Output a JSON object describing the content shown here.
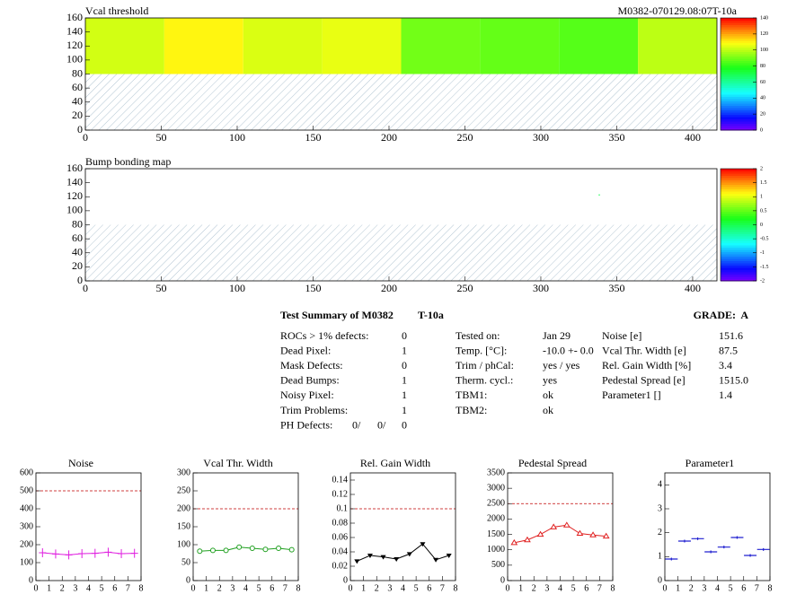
{
  "chart_data": [
    {
      "type": "heatmap",
      "title": "Vcal threshold",
      "subtitle": "M0382-070129.08:07T-10a",
      "xlim": [
        0,
        416
      ],
      "xticks": [
        0,
        50,
        100,
        150,
        200,
        250,
        300,
        350,
        400
      ],
      "ylim": [
        0,
        160
      ],
      "yticks": [
        0,
        20,
        40,
        60,
        80,
        100,
        120,
        140,
        160
      ],
      "x_edges": [
        0,
        52,
        104,
        156,
        208,
        260,
        312,
        364,
        416
      ],
      "y_edges": [
        80,
        160
      ],
      "z": [
        [
          103,
          110,
          104,
          106,
          90,
          88,
          86,
          100
        ]
      ],
      "masked_rows": [
        0,
        80
      ],
      "zlim": [
        0,
        140
      ],
      "zticks": [
        0,
        20,
        40,
        60,
        80,
        100,
        120,
        140
      ]
    },
    {
      "type": "heatmap",
      "title": "Bump bonding map",
      "xlim": [
        0,
        416
      ],
      "xticks": [
        0,
        50,
        100,
        150,
        200,
        250,
        300,
        350,
        400
      ],
      "ylim": [
        0,
        160
      ],
      "yticks": [
        0,
        20,
        40,
        60,
        80,
        100,
        120,
        140,
        160
      ],
      "x": [
        338
      ],
      "y": [
        122
      ],
      "values": [
        0
      ],
      "masked_rows": [
        0,
        80
      ],
      "zlim": [
        -2,
        2
      ],
      "zticks": [
        -2,
        -1.5,
        -1,
        -0.5,
        0,
        0.5,
        1,
        1.5,
        2
      ]
    },
    {
      "type": "line",
      "title": "Noise",
      "x": [
        0.5,
        1.5,
        2.5,
        3.5,
        4.5,
        5.5,
        6.5,
        7.5
      ],
      "values": [
        155,
        148,
        143,
        150,
        152,
        158,
        150,
        152
      ],
      "color": "#e020e0",
      "marker": "plus",
      "limit": 500,
      "xlim": [
        0,
        8
      ],
      "xticks": [
        0,
        1,
        2,
        3,
        4,
        5,
        6,
        7,
        8
      ],
      "ylim": [
        0,
        600
      ],
      "yticks": [
        0,
        100,
        200,
        300,
        400,
        500,
        600
      ]
    },
    {
      "type": "line",
      "title": "Vcal Thr. Width",
      "x": [
        0.5,
        1.5,
        2.5,
        3.5,
        4.5,
        5.5,
        6.5,
        7.5
      ],
      "values": [
        82,
        84,
        84,
        93,
        90,
        87,
        90,
        86
      ],
      "color": "#20a020",
      "marker": "circle",
      "limit": 200,
      "xlim": [
        0,
        8
      ],
      "xticks": [
        0,
        1,
        2,
        3,
        4,
        5,
        6,
        7,
        8
      ],
      "ylim": [
        0,
        300
      ],
      "yticks": [
        0,
        50,
        100,
        150,
        200,
        250,
        300
      ]
    },
    {
      "type": "line",
      "title": "Rel. Gain Width",
      "x": [
        0.5,
        1.5,
        2.5,
        3.5,
        4.5,
        5.5,
        6.5,
        7.5
      ],
      "values": [
        0.027,
        0.035,
        0.033,
        0.03,
        0.037,
        0.051,
        0.029,
        0.035
      ],
      "color": "#000000",
      "marker": "triangle-down",
      "limit": 0.1,
      "xlim": [
        0,
        8
      ],
      "xticks": [
        0,
        1,
        2,
        3,
        4,
        5,
        6,
        7,
        8
      ],
      "ylim": [
        0,
        0.15
      ],
      "yticks": [
        0,
        0.02,
        0.04,
        0.06,
        0.08,
        0.1,
        0.12,
        0.14
      ]
    },
    {
      "type": "line",
      "title": "Pedestal Spread",
      "x": [
        0.5,
        1.5,
        2.5,
        3.5,
        4.5,
        5.5,
        6.5,
        7.5
      ],
      "values": [
        1230,
        1320,
        1500,
        1740,
        1800,
        1530,
        1480,
        1440
      ],
      "color": "#e02020",
      "marker": "triangle",
      "limit": 2500,
      "xlim": [
        0,
        8
      ],
      "xticks": [
        0,
        1,
        2,
        3,
        4,
        5,
        6,
        7,
        8
      ],
      "ylim": [
        0,
        3500
      ],
      "yticks": [
        0,
        500,
        1000,
        1500,
        2000,
        2500,
        3000,
        3500
      ]
    },
    {
      "type": "points",
      "title": "Parameter1",
      "x": [
        0.5,
        1.5,
        2.5,
        3.5,
        4.5,
        5.5,
        6.5,
        7.5
      ],
      "values": [
        0.9,
        1.65,
        1.75,
        1.2,
        1.4,
        1.8,
        1.05,
        1.3
      ],
      "color": "#2020d0",
      "marker": "dash",
      "xlim": [
        0,
        8
      ],
      "xticks": [
        0,
        1,
        2,
        3,
        4,
        5,
        6,
        7,
        8
      ],
      "ylim": [
        0,
        4.5
      ],
      "yticks": [
        0,
        1,
        2,
        3,
        4
      ]
    }
  ],
  "summary": {
    "title": "Test Summary of M0382",
    "test": "T-10a",
    "grade": "GRADE:  A",
    "defects": [
      [
        "ROCs > 1% defects:",
        "0"
      ],
      [
        "Dead Pixel:",
        "1"
      ],
      [
        "Mask Defects:",
        "0"
      ],
      [
        "Dead Bumps:",
        "1"
      ],
      [
        "Noisy Pixel:",
        "1"
      ],
      [
        "Trim Problems:",
        "1"
      ]
    ],
    "ph_defects": {
      "label": "PH Defects:",
      "values": [
        "0/",
        "0/",
        "0"
      ],
      "colors": [
        "#000000",
        "#ff0000",
        "#0000ff"
      ]
    },
    "test_info": [
      [
        "Tested on:",
        "Jan 29"
      ],
      [
        "Temp. [°C]:",
        "-10.0 +- 0.0"
      ],
      [
        "Trim / phCal:",
        "yes / yes"
      ],
      [
        "Therm. cycl.:",
        "yes"
      ],
      [
        "TBM1:",
        "ok"
      ],
      [
        "TBM2:",
        "ok"
      ]
    ],
    "results": [
      [
        "Noise [e]",
        "151.6"
      ],
      [
        "Vcal Thr. Width [e]",
        "87.5"
      ],
      [
        "Rel. Gain Width [%]",
        "3.4"
      ],
      [
        "Pedestal Spread [e]",
        "1515.0"
      ],
      [
        "Parameter1 []",
        "1.4"
      ]
    ]
  }
}
